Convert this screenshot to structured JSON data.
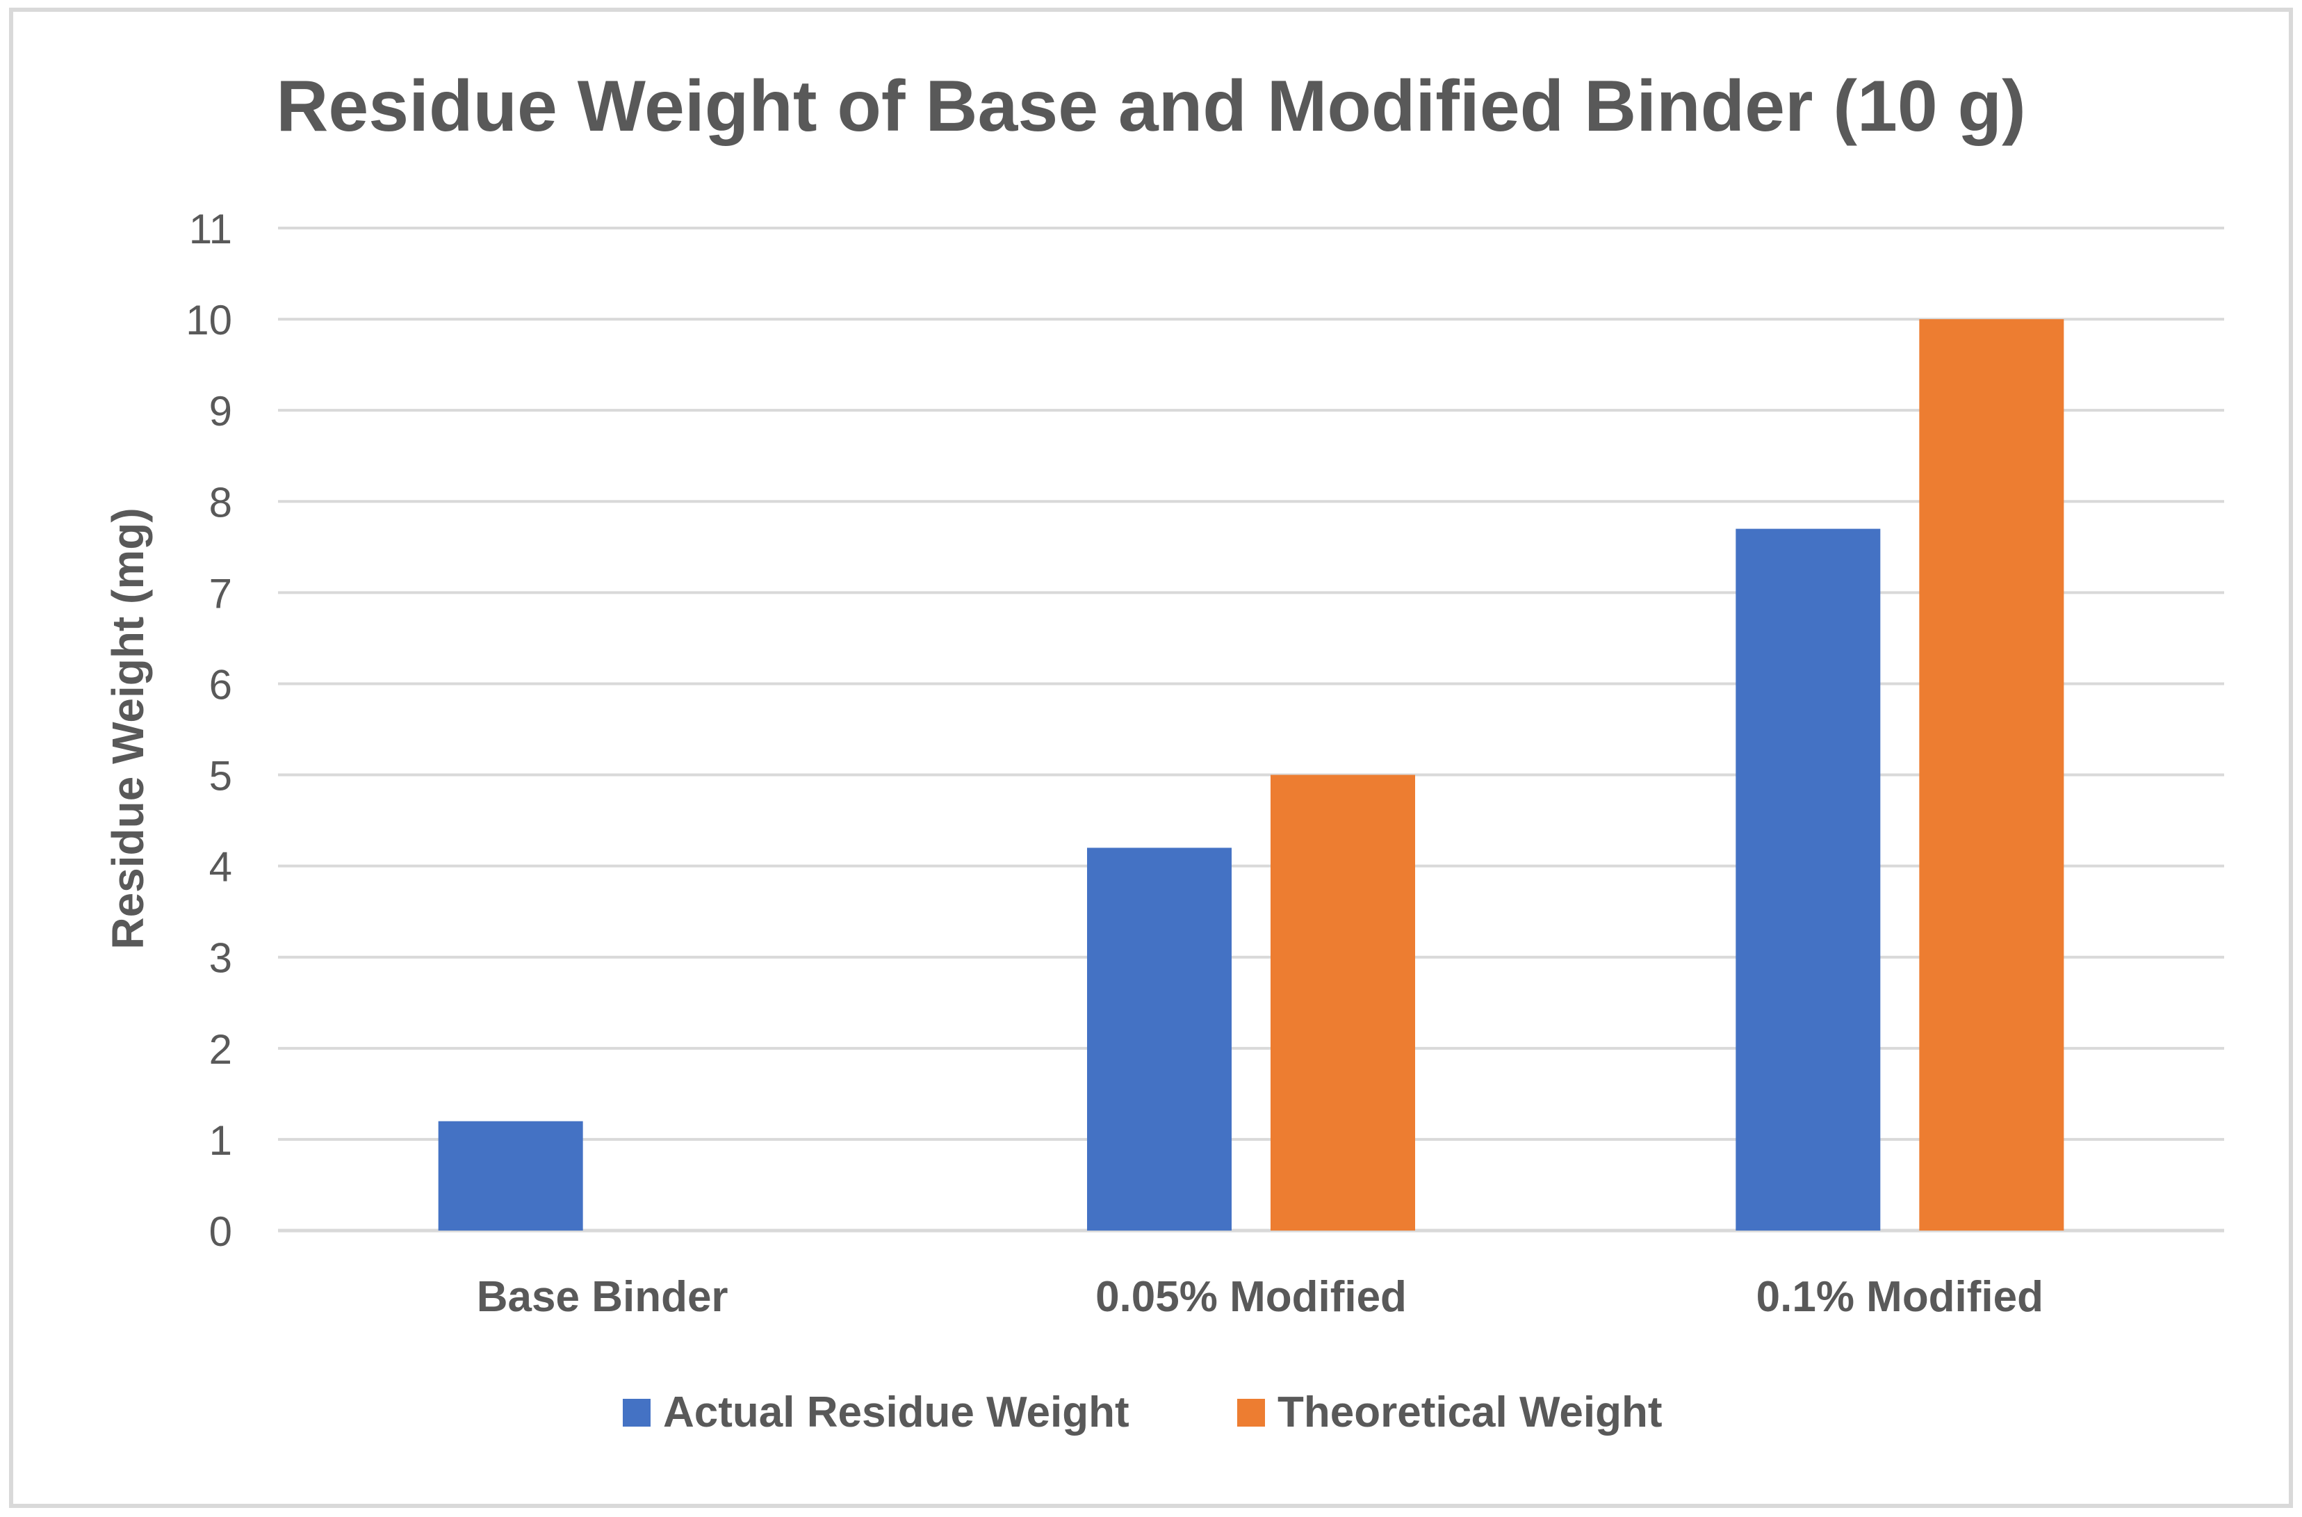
{
  "colors": {
    "background": "#ffffff",
    "border": "#d9d9d9",
    "gridline": "#d9d9d9",
    "text": "#595959",
    "series_actual": "#4472c4",
    "series_theoretical": "#ed7d31"
  },
  "chart_data": {
    "type": "bar",
    "title": "Residue Weight of Base and Modified Binder (10 g)",
    "xlabel": "",
    "ylabel": "Residue Weight (mg)",
    "categories": [
      "Base Binder",
      "0.05% Modified",
      "0.1% Modified"
    ],
    "series": [
      {
        "name": "Actual Residue Weight",
        "color": "#4472c4",
        "values": [
          1.2,
          4.2,
          7.7
        ]
      },
      {
        "name": "Theoretical Weight",
        "color": "#ed7d31",
        "values": [
          null,
          5,
          10
        ]
      }
    ],
    "ylim": [
      0,
      11
    ],
    "yticks": [
      "0",
      "1",
      "2",
      "3",
      "4",
      "5",
      "6",
      "7",
      "8",
      "9",
      "10",
      "11"
    ],
    "grid": true,
    "legend": "bottom"
  }
}
